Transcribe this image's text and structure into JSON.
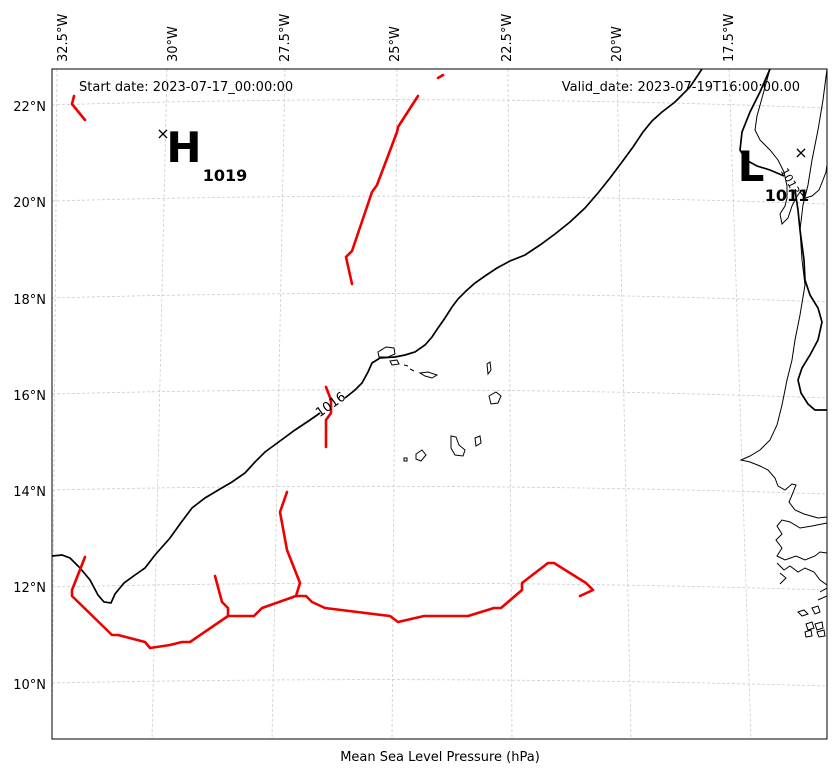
{
  "header": {
    "start_date": "Start date: 2023-07-17_00:00:00",
    "valid_date": "Valid_date: 2023-07-19T16:00:00.00"
  },
  "footer": {
    "caption": "Mean Sea Level Pressure (hPa)"
  },
  "axes": {
    "lon_labels": [
      "32.5°W",
      "30°W",
      "27.5°W",
      "25°W",
      "22.5°W",
      "20°W",
      "17.5°W"
    ],
    "lat_labels": [
      "22°N",
      "20°N",
      "18°N",
      "16°N",
      "14°N",
      "12°N",
      "10°N"
    ]
  },
  "pressure_centers": {
    "high": {
      "letter": "H",
      "value": "1019"
    },
    "low": {
      "letter": "L",
      "value": "1011"
    }
  },
  "contours": {
    "main_label": "1016",
    "coast_label": "1013"
  },
  "colors": {
    "isobar": "#000000",
    "front": "#ee0000",
    "grid": "#cccccc",
    "coast": "#000000"
  }
}
